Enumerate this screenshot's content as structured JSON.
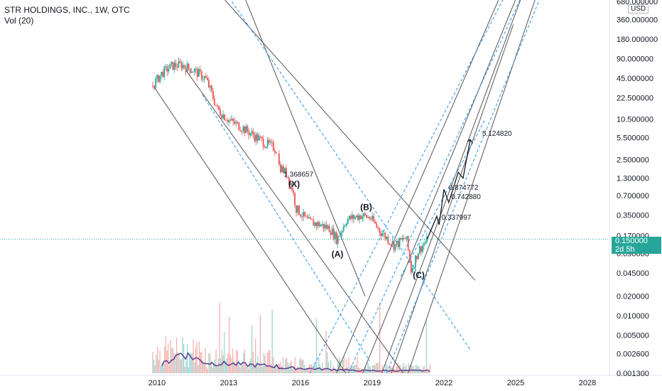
{
  "header": {
    "symbol_line": "STR HOLDINGS, INC., 1W, OTC",
    "volume_line": "Vol (20)",
    "currency": "USD"
  },
  "price_tag": {
    "price": "0.150000",
    "countdown": "2d 5h"
  },
  "colors": {
    "up": "#26a69a",
    "down": "#ef5350",
    "channel": "#2196f3",
    "line": "#131722",
    "vol_ma": "#5b3e8e"
  },
  "chart_data": {
    "type": "line",
    "title": "STR HOLDINGS, INC., 1W, OTC",
    "y_scale": "log",
    "y_ticks": [
      "680.000000",
      "360.000000",
      "180.000000",
      "90.000000",
      "45.000000",
      "22.500000",
      "10.500000",
      "5.500000",
      "2.500000",
      "1.300000",
      "0.700000",
      "0.350000",
      "0.170000",
      "0.090000",
      "0.045000",
      "0.020000",
      "0.010000",
      "0.005000",
      "0.002600",
      "0.001300"
    ],
    "x_ticks": [
      "2010",
      "2013",
      "2016",
      "2019",
      "2022",
      "2025",
      "2028"
    ],
    "series": [
      {
        "name": "Vol (20)",
        "type": "volume"
      }
    ],
    "price_path": [
      [
        2009.8,
        35
      ],
      [
        2010.2,
        55
      ],
      [
        2010.6,
        70
      ],
      [
        2011.0,
        72
      ],
      [
        2011.5,
        60
      ],
      [
        2012.0,
        45
      ],
      [
        2012.2,
        30
      ],
      [
        2012.5,
        15
      ],
      [
        2013.0,
        10
      ],
      [
        2013.5,
        8
      ],
      [
        2014.0,
        6
      ],
      [
        2014.5,
        4.5
      ],
      [
        2014.8,
        4
      ],
      [
        2015.0,
        3.5
      ],
      [
        2015.0,
        2.2
      ],
      [
        2015.4,
        1.5
      ],
      [
        2015.6,
        1.0
      ],
      [
        2015.8,
        0.45
      ],
      [
        2016.3,
        0.28
      ],
      [
        2016.8,
        0.25
      ],
      [
        2017.2,
        0.22
      ],
      [
        2017.5,
        0.15
      ],
      [
        2017.9,
        0.3
      ],
      [
        2018.5,
        0.35
      ],
      [
        2018.9,
        0.32
      ],
      [
        2019.3,
        0.2
      ],
      [
        2019.9,
        0.12
      ],
      [
        2020.4,
        0.16
      ],
      [
        2020.6,
        0.05
      ],
      [
        2020.9,
        0.1
      ],
      [
        2021.3,
        0.15
      ]
    ],
    "projection_path": [
      [
        2021.3,
        0.15
      ],
      [
        2021.7,
        0.338
      ],
      [
        2021.8,
        0.25
      ],
      [
        2022.0,
        0.875
      ],
      [
        2022.2,
        0.55
      ],
      [
        2022.6,
        1.6
      ],
      [
        2022.8,
        1.3
      ],
      [
        2023.1,
        5.12
      ]
    ],
    "annotations": [
      {
        "label": "1.368657",
        "x": 2015.3,
        "y": 1.369
      },
      {
        "label": "(X)",
        "x": 2015.5,
        "y": 0.95,
        "wave": true
      },
      {
        "label": "(B)",
        "x": 2018.5,
        "y": 0.42,
        "wave": true
      },
      {
        "label": "(A)",
        "x": 2017.3,
        "y": 0.08,
        "wave": true
      },
      {
        "label": "(C)",
        "x": 2020.7,
        "y": 0.038,
        "wave": true
      },
      {
        "label": "0.337997",
        "x": 2021.9,
        "y": 0.3
      },
      {
        "label": "0.874772",
        "x": 2022.2,
        "y": 0.86
      },
      {
        "label": "0.742880",
        "x": 2022.3,
        "y": 0.62
      },
      {
        "label": "5.124820",
        "x": 2023.6,
        "y": 5.8
      }
    ]
  }
}
